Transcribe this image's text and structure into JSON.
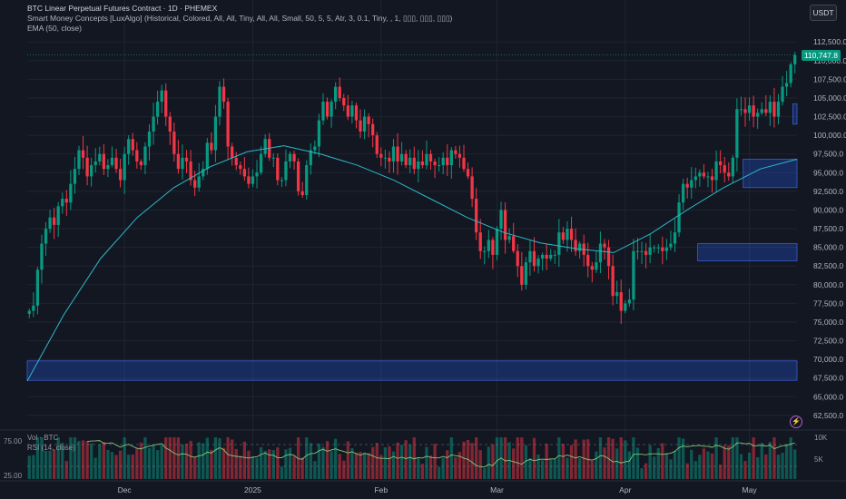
{
  "legend": {
    "title": "BTC Linear Perpetual Futures Contract · 1D · PHEMEX",
    "indicator1": "Smart Money Concepts [LuxAlgo] (Historical, Colored, All, All, Tiny, All, All, Small, 50, 5, 5, Atr, 3, 0.1, Tiny, , 1, ▯▯▯, ▯▯▯, ▯▯▯)",
    "indicator2": "EMA (50, close)"
  },
  "currency": "USDT",
  "last_price": "110,747.8",
  "vol_label": "Vol · BTC",
  "rsi_label": "RSI (14, close)",
  "rsi_levels": [
    "75.00",
    "25.00"
  ],
  "vol_axis": [
    "10K",
    "5K"
  ],
  "colors": {
    "up": "#089981",
    "down": "#f23645",
    "ema": "#2db8c8",
    "zone": "#2a4a8c",
    "rsi": "#7fc97a",
    "bg": "#131722"
  },
  "chart_data": {
    "type": "candlestick",
    "symbol": "BTC Linear Perpetual Futures Contract",
    "interval": "1D",
    "exchange": "PHEMEX",
    "x_labels": [
      "Dec",
      "2025",
      "Feb",
      "Mar",
      "Apr",
      "May"
    ],
    "y_ticks": [
      "112,500.0",
      "110,000.0",
      "107,500.0",
      "105,000.0",
      "102,500.0",
      "100,000.0",
      "97,500.0",
      "95,000.0",
      "92,500.0",
      "90,000.0",
      "87,500.0",
      "85,000.0",
      "82,500.0",
      "80,000.0",
      "77,500.0",
      "75,000.0",
      "72,500.0",
      "70,000.0",
      "67,500.0",
      "65,000.0",
      "62,500.0"
    ],
    "ylim": [
      62000,
      113500
    ],
    "last_price": 110747.8,
    "month_anchors": [
      {
        "label": "Dec",
        "index": 23
      },
      {
        "label": "2025",
        "index": 54
      },
      {
        "label": "Feb",
        "index": 85
      },
      {
        "label": "Mar",
        "index": 113
      },
      {
        "label": "Apr",
        "index": 144
      },
      {
        "label": "May",
        "index": 174
      }
    ],
    "closes": [
      76500,
      77200,
      82000,
      85500,
      87500,
      89000,
      88000,
      90500,
      91500,
      91000,
      93500,
      95500,
      98000,
      97000,
      94500,
      96000,
      96500,
      97500,
      95500,
      96000,
      97000,
      95500,
      94000,
      97500,
      99500,
      98000,
      96500,
      96000,
      98500,
      100500,
      102500,
      104500,
      106000,
      102500,
      100500,
      97500,
      95500,
      97000,
      96500,
      94000,
      93000,
      94500,
      95500,
      99000,
      98000,
      102500,
      106500,
      104500,
      98500,
      97000,
      96000,
      95500,
      94500,
      93500,
      94500,
      95000,
      97500,
      99500,
      97000,
      97000,
      94000,
      94000,
      96500,
      97500,
      96500,
      92500,
      92000,
      96000,
      98000,
      98500,
      102000,
      104500,
      102500,
      104500,
      106500,
      105000,
      104000,
      102500,
      104000,
      102000,
      100500,
      102500,
      101500,
      100000,
      97500,
      97000,
      97000,
      96500,
      98500,
      96500,
      97500,
      96000,
      97000,
      95500,
      96500,
      96000,
      97500,
      96500,
      96000,
      96000,
      97000,
      96000,
      98000,
      97500,
      97000,
      95500,
      94500,
      91500,
      87000,
      84500,
      84500,
      86000,
      84000,
      87500,
      90000,
      86000,
      86500,
      84500,
      82500,
      80000,
      83000,
      84500,
      82500,
      83500,
      84000,
      83500,
      84000,
      84000,
      87000,
      86000,
      87500,
      86000,
      84500,
      85500,
      84000,
      82500,
      82000,
      83000,
      85500,
      85000,
      82500,
      78500,
      79000,
      76500,
      77500,
      78000,
      84500,
      84500,
      84500,
      84000,
      85000,
      85000,
      85000,
      84500,
      85000,
      85500,
      87000,
      91000,
      93500,
      93000,
      94000,
      94500,
      95000,
      94500,
      94500,
      94000,
      96500,
      96000,
      95000,
      94500,
      97000,
      103500,
      103500,
      103000,
      104000,
      102500,
      103000,
      103500,
      103000,
      104500,
      102500,
      104500,
      106500,
      107000,
      109500,
      110747.8
    ],
    "ema_50": {
      "type": "line",
      "period": 50,
      "values": [
        67100,
        76000,
        83500,
        89000,
        93000,
        95800,
        97800,
        98600,
        97500,
        96000,
        94000,
        91500,
        89000,
        87000,
        85600,
        84800,
        84300,
        86800,
        90000,
        93000,
        95500,
        96800
      ]
    },
    "order_blocks": [
      {
        "x_start_index": 0,
        "x_end_index": 191,
        "y_low": 67200,
        "y_high": 69800
      },
      {
        "x_start_index": 162,
        "x_end_index": 191,
        "y_low": 83200,
        "y_high": 85500
      },
      {
        "x_start_index": 173,
        "x_end_index": 191,
        "y_low": 93000,
        "y_high": 96800
      },
      {
        "x_start_index": 185,
        "x_end_index": 191,
        "y_low": 101500,
        "y_high": 104200
      }
    ],
    "volume_axis": [
      "10K",
      "5K"
    ],
    "rsi_levels": [
      75,
      25
    ]
  }
}
